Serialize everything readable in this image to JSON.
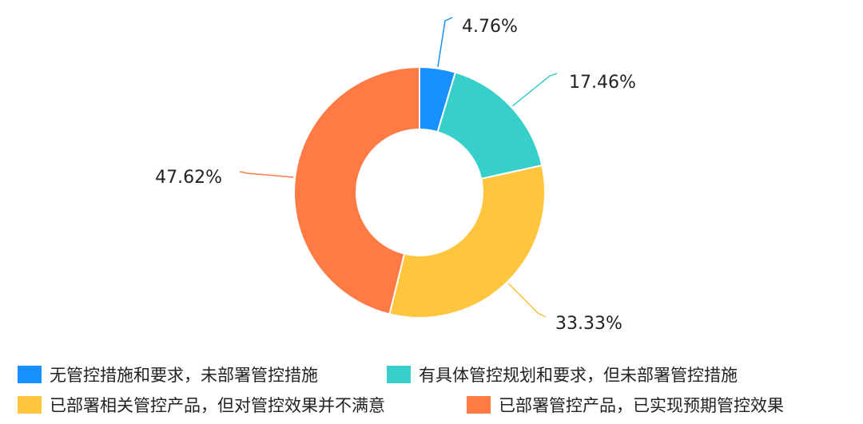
{
  "chart_data": {
    "type": "pie",
    "variant": "donut",
    "categories": [
      "无管控措施和要求，未部署管控措施",
      "有具体管控规划和要求，但未部署管控措施",
      "已部署相关管控产品，但对管控效果并不满意",
      "已部署管控产品，已实现预期管控效果"
    ],
    "values": [
      4.76,
      17.46,
      33.33,
      47.62
    ],
    "labels": [
      "4.76%",
      "17.46%",
      "33.33%",
      "47.62%"
    ],
    "colors": [
      "#1890FF",
      "#36CFC9",
      "#FFC53D",
      "#FF7A45"
    ],
    "legend_position": "bottom",
    "title": ""
  }
}
